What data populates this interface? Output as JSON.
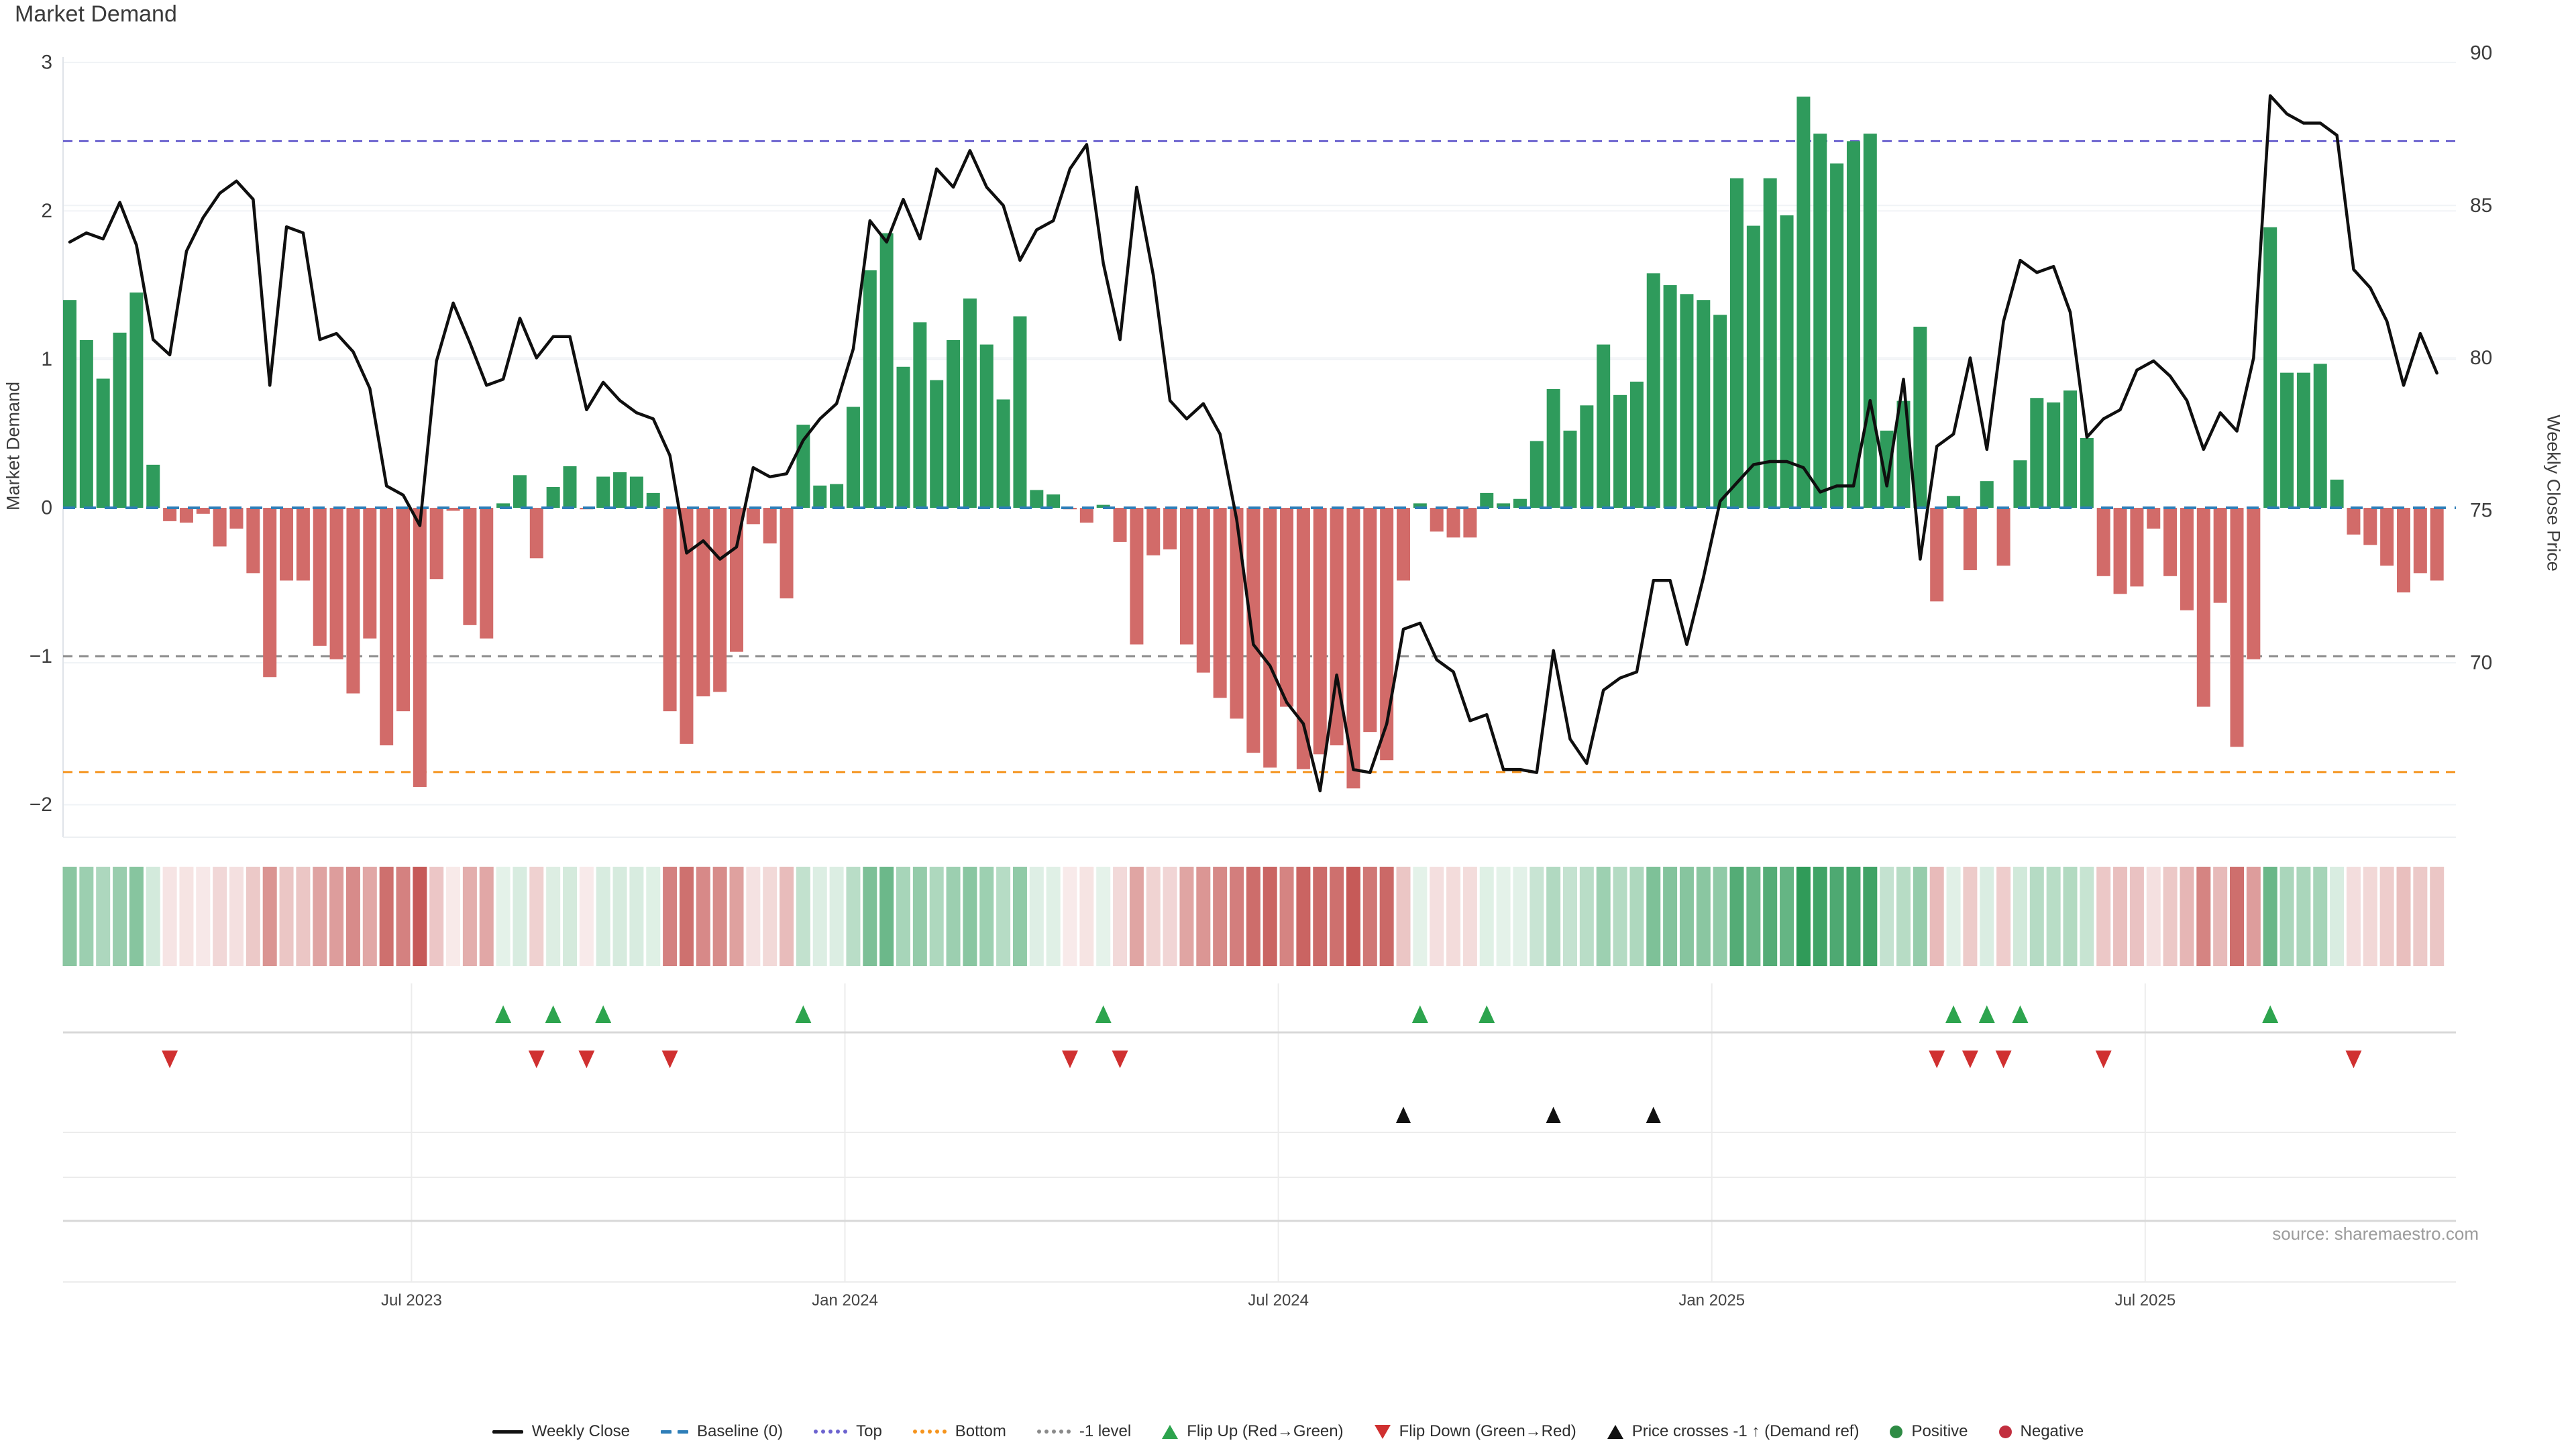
{
  "title": "Market Demand",
  "axes": {
    "left_title": "Market Demand",
    "right_title": "Weekly Close Price",
    "left_ticks": [
      {
        "label": "3",
        "value": 3
      },
      {
        "label": "2",
        "value": 2
      },
      {
        "label": "1",
        "value": 1
      },
      {
        "label": "0",
        "value": 0
      },
      {
        "label": "−1",
        "value": -1
      },
      {
        "label": "−2",
        "value": -2
      }
    ],
    "right_ticks": [
      {
        "label": "90",
        "value": 90
      },
      {
        "label": "85",
        "value": 85
      },
      {
        "label": "80",
        "value": 80
      },
      {
        "label": "75",
        "value": 75
      },
      {
        "label": "70",
        "value": 70
      }
    ]
  },
  "source": "source: sharemaestro.com",
  "colors": {
    "bar_positive": "#2f9b5c",
    "bar_negative": "#d26b69",
    "price_line": "#0f0f0f",
    "baseline": "#2e7eb8",
    "top_level": "#6c63cf",
    "bottom_level": "#f5941d",
    "minus1_level": "#8a8a8a",
    "heat_green": "#2e9a58",
    "heat_red": "#c65957",
    "grid": "#f0f3f6",
    "marker_grid_strong": "#d8d8d8",
    "marker_grid_faint": "#ececec",
    "flip_up_marker": "#2da44e",
    "flip_down_marker": "#d03030",
    "price_cross_marker": "#111111"
  },
  "legend": [
    {
      "label": "Weekly Close",
      "type": "line",
      "color": "#111111"
    },
    {
      "label": "Baseline (0)",
      "type": "dashes",
      "color": "#2e7eb8"
    },
    {
      "label": "Top",
      "type": "dots",
      "color": "#6c63cf"
    },
    {
      "label": "Bottom",
      "type": "dots",
      "color": "#f5941d"
    },
    {
      "label": "-1 level",
      "type": "dots",
      "color": "#8a8a8a"
    },
    {
      "label": "Flip Up (Red→Green)",
      "type": "tri-up",
      "color": "#2da44e"
    },
    {
      "label": "Flip Down (Green→Red)",
      "type": "tri-down",
      "color": "#d03030"
    },
    {
      "label": "Price crosses -1 ↑ (Demand ref)",
      "type": "tri-up",
      "color": "#111111"
    },
    {
      "label": "Positive",
      "type": "circle",
      "color": "#2e8b44"
    },
    {
      "label": "Negative",
      "type": "circle",
      "color": "#c22f3f"
    }
  ],
  "chart_data": {
    "type": [
      "bar",
      "line",
      "heatmap",
      "markers"
    ],
    "title": "Market Demand",
    "x_unit": "week",
    "n_weeks": 143,
    "x_tick_labels": [
      {
        "label": "Jul 2023",
        "week": 21.5
      },
      {
        "label": "Jan 2024",
        "week": 47.5
      },
      {
        "label": "Jul 2024",
        "week": 73.5
      },
      {
        "label": "Jan 2025",
        "week": 99.5
      },
      {
        "label": "Jul 2025",
        "week": 125.5
      }
    ],
    "ylim_left": [
      -2.22,
      3.04
    ],
    "ylim_right": [
      64.3,
      89.9
    ],
    "levels": {
      "baseline": 0,
      "top": 2.47,
      "bottom": -1.78,
      "minus1": -1
    },
    "series": [
      {
        "name": "Market Demand",
        "type": "bar",
        "axis": "left",
        "values": [
          1.4,
          1.13,
          0.87,
          1.18,
          1.45,
          0.29,
          -0.09,
          -0.1,
          -0.04,
          -0.26,
          -0.14,
          -0.44,
          -1.14,
          -0.49,
          -0.49,
          -0.93,
          -1.02,
          -1.25,
          -0.88,
          -1.6,
          -1.37,
          -1.88,
          -0.48,
          -0.02,
          -0.79,
          -0.88,
          0.03,
          0.22,
          -0.34,
          0.14,
          0.28,
          -0.01,
          0.21,
          0.24,
          0.21,
          0.1,
          -1.37,
          -1.59,
          -1.27,
          -1.24,
          -0.97,
          -0.11,
          -0.24,
          -0.61,
          0.56,
          0.15,
          0.16,
          0.68,
          1.6,
          1.85,
          0.95,
          1.25,
          0.86,
          1.13,
          1.41,
          1.1,
          0.73,
          1.29,
          0.12,
          0.09,
          -0.01,
          -0.1,
          0.02,
          -0.23,
          -0.92,
          -0.32,
          -0.28,
          -0.92,
          -1.11,
          -1.28,
          -1.42,
          -1.65,
          -1.75,
          -1.34,
          -1.76,
          -1.66,
          -1.6,
          -1.89,
          -1.51,
          -1.7,
          -0.49,
          0.03,
          -0.16,
          -0.2,
          -0.2,
          0.1,
          0.03,
          0.06,
          0.45,
          0.8,
          0.52,
          0.69,
          1.1,
          0.76,
          0.85,
          1.58,
          1.5,
          1.44,
          1.4,
          1.3,
          2.22,
          1.9,
          2.22,
          1.97,
          2.77,
          2.52,
          2.32,
          2.47,
          2.52,
          0.52,
          0.72,
          1.22,
          -0.63,
          0.08,
          -0.42,
          0.18,
          -0.39,
          0.32,
          0.74,
          0.71,
          0.79,
          0.47,
          -0.46,
          -0.58,
          -0.53,
          -0.14,
          -0.46,
          -0.69,
          -1.34,
          -0.64,
          -1.61,
          -1.02,
          1.89,
          0.91,
          0.91,
          0.97,
          0.19,
          -0.18,
          -0.25,
          -0.39,
          -0.57,
          -0.44,
          -0.49
        ]
      },
      {
        "name": "Weekly Close",
        "type": "line",
        "axis": "right",
        "values": [
          83.8,
          84.1,
          83.9,
          85.1,
          83.7,
          80.6,
          80.1,
          83.5,
          84.6,
          85.4,
          85.8,
          85.2,
          79.1,
          84.3,
          84.1,
          80.6,
          80.8,
          80.2,
          79.0,
          75.8,
          75.5,
          74.5,
          79.9,
          81.8,
          80.5,
          79.1,
          79.3,
          81.3,
          80.0,
          80.7,
          80.7,
          78.3,
          79.2,
          78.6,
          78.2,
          78.0,
          76.8,
          73.6,
          74.0,
          73.4,
          73.8,
          76.4,
          76.1,
          76.2,
          77.3,
          78.0,
          78.5,
          80.3,
          84.5,
          83.8,
          85.2,
          83.9,
          86.2,
          85.6,
          86.8,
          85.6,
          85.0,
          83.2,
          84.2,
          84.5,
          86.2,
          87.0,
          83.1,
          80.6,
          85.6,
          82.7,
          78.6,
          78.0,
          78.5,
          77.5,
          74.7,
          70.6,
          69.9,
          68.7,
          68.0,
          65.8,
          69.6,
          66.5,
          66.4,
          68.0,
          71.1,
          71.3,
          70.1,
          69.7,
          68.1,
          68.3,
          66.5,
          66.5,
          66.4,
          70.4,
          67.5,
          66.7,
          69.1,
          69.5,
          69.7,
          72.7,
          72.7,
          70.6,
          72.8,
          75.3,
          75.9,
          76.5,
          76.6,
          76.6,
          76.4,
          75.6,
          75.8,
          75.8,
          78.6,
          75.8,
          79.3,
          73.4,
          77.1,
          77.5,
          80.0,
          77.0,
          81.2,
          83.2,
          82.8,
          83.0,
          81.5,
          77.4,
          78.0,
          78.3,
          79.6,
          79.9,
          79.4,
          78.6,
          77.0,
          78.2,
          77.6,
          80.0,
          88.6,
          88.0,
          87.7,
          87.7,
          87.3,
          82.9,
          82.3,
          81.2,
          79.1,
          80.8,
          79.5
        ]
      }
    ],
    "markers": {
      "flip_up_weeks": [
        27,
        30,
        33,
        45,
        63,
        82,
        86,
        114,
        116,
        118,
        133
      ],
      "flip_down_weeks": [
        7,
        29,
        32,
        37,
        61,
        64,
        113,
        115,
        117,
        123,
        138
      ],
      "price_cross_weeks": [
        81,
        90,
        96
      ]
    },
    "heatmap": {
      "max_green": 2.8,
      "max_red": 1.9
    }
  }
}
